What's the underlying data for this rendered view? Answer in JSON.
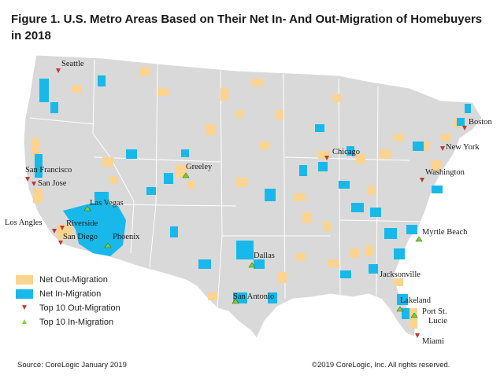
{
  "title": "Figure 1. U.S. Metro Areas Based on Their Net In- And Out-Migration of Homebuyers in 2018",
  "colors": {
    "land": "#d9d9d9",
    "out_migration": "#fcd38f",
    "in_migration": "#18b8ea",
    "out_marker": "#c0392b",
    "in_marker": "#7ccf3a"
  },
  "legend": {
    "out": "Net Out-Migration",
    "in": "Net In-Migration",
    "top_out": "Top 10 Out-Migration",
    "top_in": "Top 10 In-Migration"
  },
  "cities": {
    "seattle": "Seattle",
    "san_francisco": "San Francisco",
    "san_jose": "San Jose",
    "los_angeles": "Los Angles",
    "riverside": "Riverside",
    "san_diego": "San Diego",
    "las_vegas": "Las Vegas",
    "phoenix": "Phoenix",
    "greeley": "Greeley",
    "dallas": "Dallas",
    "san_antonio": "San Antonio",
    "chicago": "Chicago",
    "boston": "Boston",
    "new_york": "New York",
    "washington": "Washington",
    "myrtle_beach": "Myrtle Beach",
    "jacksonville": "Jacksonville",
    "lakeland": "Lakeland",
    "port_st_lucie_1": "Port St.",
    "port_st_lucie_2": "Lucie",
    "miami": "Miami"
  },
  "footer": {
    "source": "Source: CoreLogic January 2019",
    "copyright": "©2019 CoreLogic, Inc. All rights reserved."
  }
}
